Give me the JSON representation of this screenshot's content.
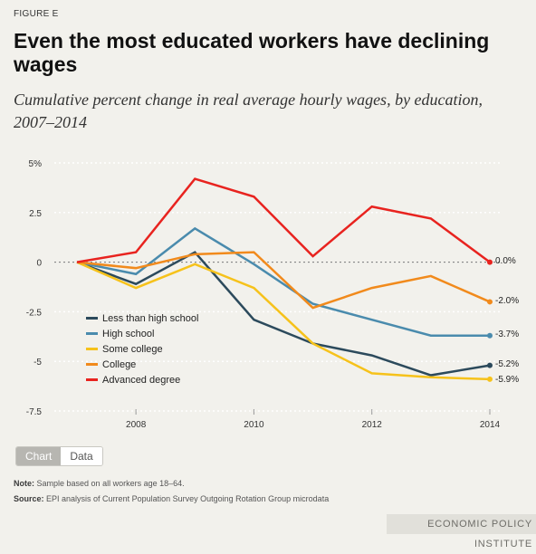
{
  "figure_label": "FIGURE E",
  "title": "Even the most educated workers have declining wages",
  "subtitle": "Cumulative percent change in real average hourly wages, by education, 2007–2014",
  "tabs": {
    "chart": "Chart",
    "data": "Data"
  },
  "note_label": "Note:",
  "note_text": "Sample based on all workers age 18–64.",
  "source_label": "Source:",
  "source_text": "EPI analysis of Current Population Survey Outgoing Rotation Group microdata",
  "publisher": "ECONOMIC POLICY INSTITUTE",
  "chart_data": {
    "type": "line",
    "x": [
      2007,
      2008,
      2009,
      2010,
      2011,
      2012,
      2013,
      2014
    ],
    "xlim": [
      2007,
      2014
    ],
    "xticks": [
      2008,
      2010,
      2012,
      2014
    ],
    "ylim": [
      -7.5,
      5
    ],
    "yticks": [
      5,
      2.5,
      0,
      -2.5,
      -5,
      -7.5
    ],
    "ytick_labels": [
      "5%",
      "2.5",
      "0",
      "-2.5",
      "-5",
      "-7.5"
    ],
    "grid": "horizontal dotted",
    "legend_position": "lower-left",
    "series": [
      {
        "name": "Less than high school",
        "color": "#2c4a5c",
        "values": [
          0,
          -1.1,
          0.5,
          -2.9,
          -4.1,
          -4.7,
          -5.7,
          -5.2
        ],
        "end_label": "-5.2%"
      },
      {
        "name": "High school",
        "color": "#4a8bad",
        "values": [
          0,
          -0.6,
          1.7,
          -0.1,
          -2.1,
          -2.9,
          -3.7,
          -3.7
        ],
        "end_label": "-3.7%"
      },
      {
        "name": "Some college",
        "color": "#f6c21b",
        "values": [
          0,
          -1.3,
          -0.1,
          -1.3,
          -4.1,
          -5.6,
          -5.8,
          -5.9
        ],
        "end_label": "-5.9%"
      },
      {
        "name": "College",
        "color": "#f18a1c",
        "values": [
          0,
          -0.3,
          0.4,
          0.5,
          -2.3,
          -1.3,
          -0.7,
          -2.0
        ],
        "end_label": "-2.0%"
      },
      {
        "name": "Advanced degree",
        "color": "#e8231f",
        "values": [
          0,
          0.5,
          4.2,
          3.3,
          0.3,
          2.8,
          2.2,
          0.0
        ],
        "end_label": "0.0%"
      }
    ]
  }
}
